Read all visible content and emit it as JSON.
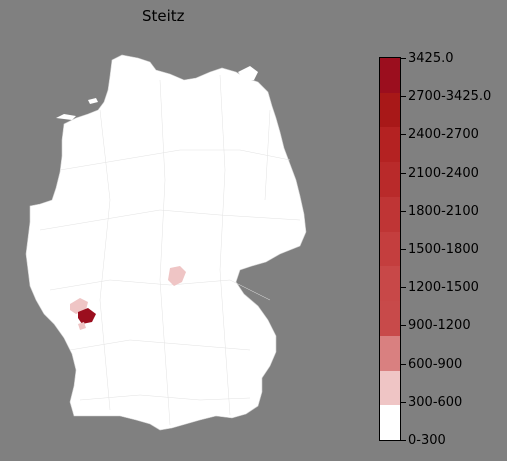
{
  "title": "Steitz",
  "legend": {
    "labels": [
      "3425.0",
      "2700-3425.0",
      "2400-2700",
      "2100-2400",
      "1800-2100",
      "1500-1800",
      "1200-1500",
      "900-1200",
      "600-900",
      "300-600",
      "0-300"
    ],
    "segment_colors": [
      "#ffffff",
      "#efc5c5",
      "#d98080",
      "#c84a4a",
      "#c84848",
      "#c43e3e",
      "#bf3535",
      "#b92a2a",
      "#b42222",
      "#a81818",
      "#9b0e1e"
    ]
  },
  "map": {
    "region": "Germany",
    "base_color": "#ffffff",
    "highlights": [
      {
        "area": "Thuringia (central)",
        "color": "#efc5c5"
      },
      {
        "area": "Rhineland-Palatinate / Hesse border",
        "color": "#efc5c5"
      },
      {
        "area": "South-west cluster",
        "color": "#9b0e1e"
      },
      {
        "area": "South-west small area",
        "color": "#efc5c5"
      }
    ]
  }
}
